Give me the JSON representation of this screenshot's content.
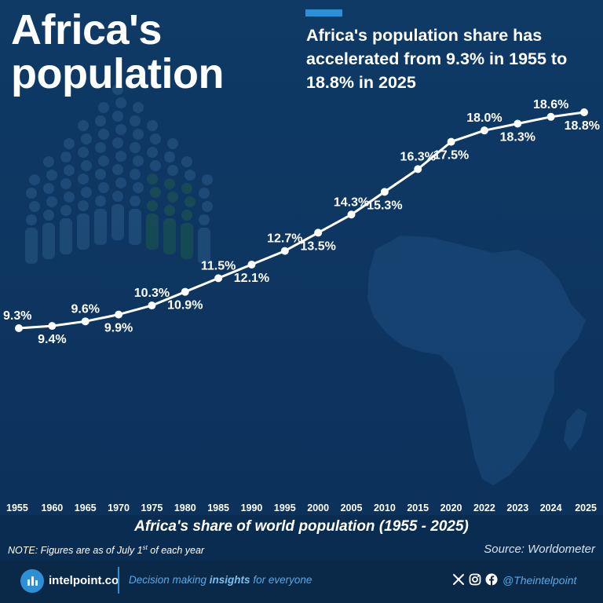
{
  "title": "Africa's\npopulation",
  "headline": "Africa's population share has accelerated from 9.3% in 1955 to 18.8% in 2025",
  "caption": "Africa's share of world population (1955 - 2025)",
  "note": {
    "prefix": "NOTE: Figures are as of July 1",
    "sup": "st",
    "suffix": " of each year"
  },
  "source": "Source: Worldometer",
  "footer": {
    "brand": "intelpoint.co",
    "tagline_pre": "Decision making ",
    "tagline_bold": "insights",
    "tagline_post": " for everyone",
    "handle": "@Theintelpoint"
  },
  "colors": {
    "background": "#0d3560",
    "accent": "#2d8fd5",
    "line": "#ffffff"
  },
  "icons": [
    "people-crowd-icon",
    "africa-map-icon",
    "intelpoint-logo-icon",
    "x-icon",
    "instagram-icon",
    "facebook-icon"
  ],
  "chart_data": {
    "type": "line",
    "title": "Africa's share of world population (1955 - 2025)",
    "x": [
      "1955",
      "1960",
      "1965",
      "1970",
      "1975",
      "1980",
      "1985",
      "1990",
      "1995",
      "2000",
      "2005",
      "2010",
      "2015",
      "2020",
      "2022",
      "2023",
      "2024",
      "2025"
    ],
    "series": [
      {
        "values": [
          9.3,
          9.4,
          9.6,
          9.9,
          10.3,
          10.9,
          11.5,
          12.1,
          12.7,
          13.5,
          14.3,
          15.3,
          16.3,
          17.5,
          18.0,
          18.3,
          18.6,
          18.8
        ]
      }
    ],
    "data_labels": [
      "9.3%",
      "9.4%",
      "9.6%",
      "9.9%",
      "10.3%",
      "10.9%",
      "11.5%",
      "12.1%",
      "12.7%",
      "13.5%",
      "14.3%",
      "15.3%",
      "16.3%",
      "17.5%",
      "18.0%",
      "18.3%",
      "18.6%",
      "18.8%"
    ],
    "label_positions": [
      "above",
      "below",
      "above",
      "below",
      "above",
      "below",
      "above",
      "below",
      "above",
      "below",
      "above",
      "below",
      "above",
      "below",
      "above",
      "below",
      "above",
      "below"
    ],
    "unit": "%",
    "ylim": [
      9.3,
      18.8
    ],
    "grid": false,
    "legend": "none"
  }
}
